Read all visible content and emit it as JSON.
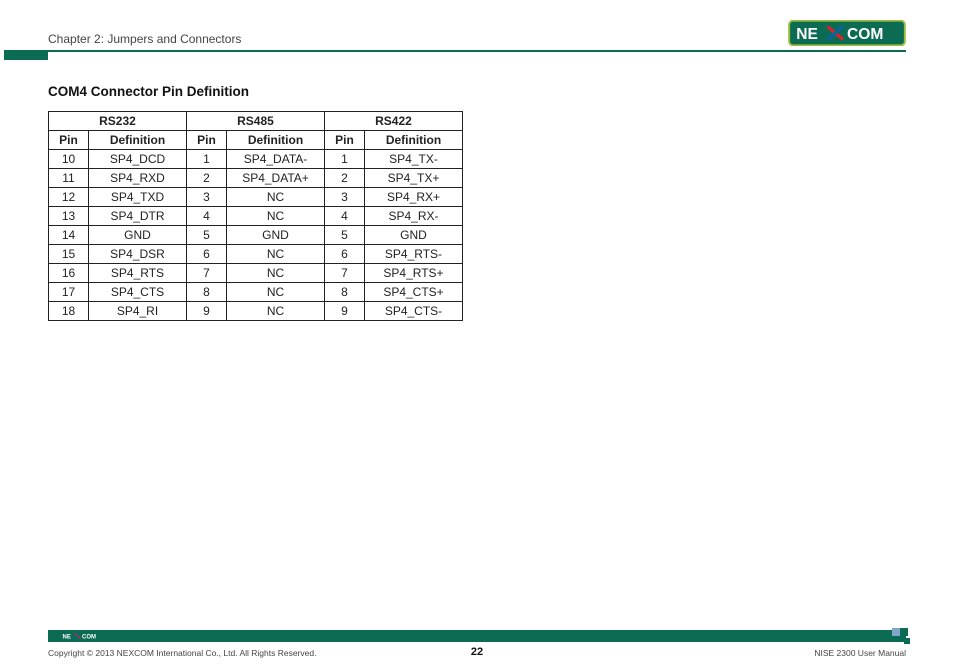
{
  "header": {
    "chapter": "Chapter 2: Jumpers and Connectors",
    "logo_text_left": "NE",
    "logo_text_right": "COM",
    "brand_bg": "#0b6b53",
    "brand_border": "#9bbf3b",
    "brand_x_stroke1": "#d8232a",
    "brand_x_stroke2": "#0b63a3"
  },
  "section": {
    "title": "COM4 Connector Pin Definition"
  },
  "table": {
    "groups": [
      "RS232",
      "RS485",
      "RS422"
    ],
    "col_labels": {
      "pin": "Pin",
      "def": "Definition"
    },
    "rows": [
      {
        "a_pin": "10",
        "a_def": "SP4_DCD",
        "b_pin": "1",
        "b_def": "SP4_DATA-",
        "c_pin": "1",
        "c_def": "SP4_TX-"
      },
      {
        "a_pin": "11",
        "a_def": "SP4_RXD",
        "b_pin": "2",
        "b_def": "SP4_DATA+",
        "c_pin": "2",
        "c_def": "SP4_TX+"
      },
      {
        "a_pin": "12",
        "a_def": "SP4_TXD",
        "b_pin": "3",
        "b_def": "NC",
        "c_pin": "3",
        "c_def": "SP4_RX+"
      },
      {
        "a_pin": "13",
        "a_def": "SP4_DTR",
        "b_pin": "4",
        "b_def": "NC",
        "c_pin": "4",
        "c_def": "SP4_RX-"
      },
      {
        "a_pin": "14",
        "a_def": "GND",
        "b_pin": "5",
        "b_def": "GND",
        "c_pin": "5",
        "c_def": "GND"
      },
      {
        "a_pin": "15",
        "a_def": "SP4_DSR",
        "b_pin": "6",
        "b_def": "NC",
        "c_pin": "6",
        "c_def": "SP4_RTS-"
      },
      {
        "a_pin": "16",
        "a_def": "SP4_RTS",
        "b_pin": "7",
        "b_def": "NC",
        "c_pin": "7",
        "c_def": "SP4_RTS+"
      },
      {
        "a_pin": "17",
        "a_def": "SP4_CTS",
        "b_pin": "8",
        "b_def": "NC",
        "c_pin": "8",
        "c_def": "SP4_CTS+"
      },
      {
        "a_pin": "18",
        "a_def": "SP4_RI",
        "b_pin": "9",
        "b_def": "NC",
        "c_pin": "9",
        "c_def": "SP4_CTS-"
      }
    ]
  },
  "footer": {
    "copyright": "Copyright © 2013 NEXCOM International Co., Ltd. All Rights Reserved.",
    "manual": "NISE 2300 User Manual",
    "page": "22",
    "sq_color_a": "#7fa7c9",
    "sq_color_b": "#0b6b53"
  }
}
